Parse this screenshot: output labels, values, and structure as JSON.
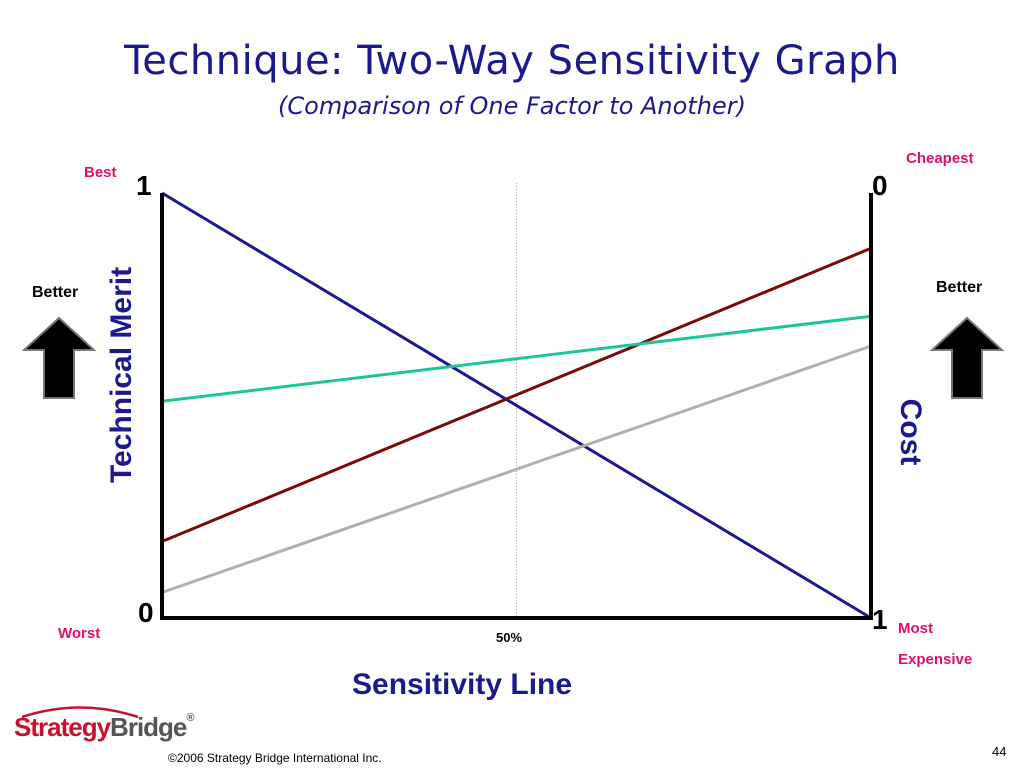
{
  "slide": {
    "title": "Technique: Two-Way Sensitivity Graph",
    "subtitle": "(Comparison of One Factor to Another)",
    "copyright": "©2006 Strategy Bridge International Inc.",
    "page_number": "44",
    "logo": {
      "part1": "Strategy",
      "part2": "Bridge",
      "mark": "®"
    }
  },
  "labels": {
    "best": "Best",
    "worst": "Worst",
    "cheapest": "Cheapest",
    "most": "Most",
    "expensive": "Expensive",
    "better_left": "Better",
    "better_right": "Better"
  },
  "chart_data": {
    "type": "line",
    "xlabel": "Sensitivity Line",
    "ylabel_left": "Technical Merit",
    "ylabel_right": "Cost",
    "left_axis_ticks": {
      "top": "1",
      "bottom": "0"
    },
    "right_axis_ticks": {
      "top": "0",
      "bottom": "1"
    },
    "midline_label": "50%",
    "xlim": [
      0,
      1
    ],
    "ylim": [
      0,
      1
    ],
    "grid": false,
    "series": [
      {
        "color": "#1a1a8c",
        "points": [
          [
            0,
            1.0
          ],
          [
            1,
            0.0
          ]
        ]
      },
      {
        "color": "#7a0a0a",
        "points": [
          [
            0,
            0.18
          ],
          [
            1,
            0.87
          ]
        ]
      },
      {
        "color": "#1fc49a",
        "points": [
          [
            0,
            0.51
          ],
          [
            1,
            0.71
          ]
        ]
      },
      {
        "color": "#b0b0b0",
        "points": [
          [
            0,
            0.06
          ],
          [
            1,
            0.64
          ]
        ]
      }
    ],
    "midline_x": 0.5
  }
}
